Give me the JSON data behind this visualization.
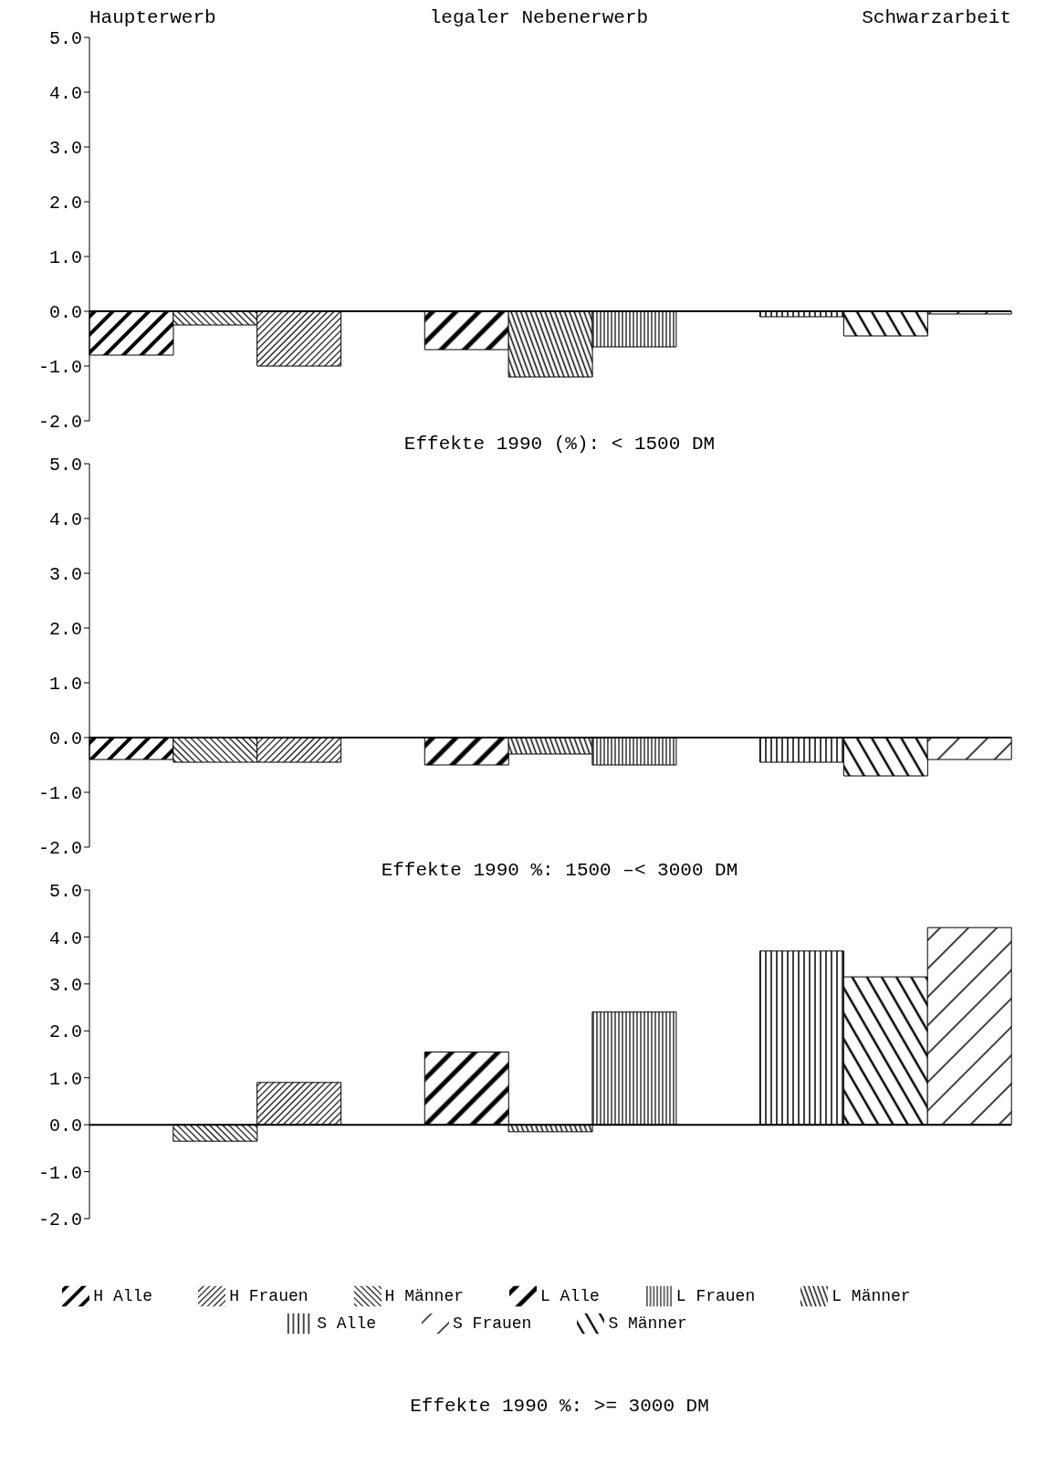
{
  "chart_data": [
    {
      "type": "bar",
      "stacked": true,
      "annotations": [
        "Haupterwerb",
        "legaler Nebenerwerb",
        "Schwarzarbeit"
      ],
      "xlabel": "Effekte 1990 (%): < 1500 DM",
      "categories": [
        null,
        null,
        null,
        null,
        null,
        null,
        null,
        null,
        null,
        null,
        null
      ],
      "ylim": [
        -2,
        5
      ],
      "yticks": [
        {
          "value": 5,
          "label": "5.0"
        },
        {
          "value": 4,
          "label": "4.0"
        },
        {
          "value": 3,
          "label": "3.0"
        },
        {
          "value": 2,
          "label": "2.0"
        },
        {
          "value": 1,
          "label": "1.0"
        },
        {
          "value": 0,
          "label": "0.0"
        },
        {
          "value": -1,
          "label": "-1.0"
        },
        {
          "value": -2,
          "label": "-2.0"
        }
      ],
      "tick_labels": "y",
      "legend": false,
      "series": [
        {
          "color": "#000000",
          "values": [
            -0.8,
            null,
            null,
            null,
            null,
            null,
            null,
            null,
            null,
            null,
            null
          ]
        },
        {
          "color": "#000000",
          "values": [
            null,
            -0.25,
            null,
            null,
            null,
            null,
            null,
            null,
            null,
            null,
            null
          ]
        },
        {
          "color": "#000000",
          "values": [
            null,
            null,
            -1.0,
            null,
            null,
            null,
            null,
            null,
            null,
            null,
            null
          ]
        },
        {
          "color": "#000000",
          "values": [
            null,
            null,
            null,
            null,
            -0.7,
            null,
            null,
            null,
            null,
            null,
            null
          ]
        },
        {
          "color": "#000000",
          "values": [
            null,
            null,
            null,
            null,
            null,
            -1.2,
            null,
            null,
            null,
            null,
            null
          ]
        },
        {
          "color": "#000000",
          "values": [
            null,
            null,
            null,
            null,
            null,
            null,
            -0.65,
            null,
            null,
            null,
            null
          ]
        },
        {
          "color": "#000000",
          "values": [
            null,
            null,
            null,
            null,
            null,
            null,
            null,
            null,
            -0.1,
            null,
            null
          ]
        },
        {
          "color": "#000000",
          "values": [
            null,
            null,
            null,
            null,
            null,
            null,
            null,
            null,
            null,
            -0.45,
            null
          ]
        },
        {
          "color": "#000000",
          "values": [
            null,
            null,
            null,
            null,
            null,
            null,
            null,
            null,
            null,
            null,
            -0.05
          ]
        }
      ]
    },
    {
      "type": "bar",
      "stacked": true,
      "xlabel": "Effekte 1990 %: 1500 –< 3000 DM",
      "categories": [
        null,
        null,
        null,
        null,
        null,
        null,
        null,
        null,
        null,
        null,
        null
      ],
      "ylim": [
        -2,
        5
      ],
      "yticks": [
        {
          "value": 5,
          "label": "5.0"
        },
        {
          "value": 4,
          "label": "4.0"
        },
        {
          "value": 3,
          "label": "3.0"
        },
        {
          "value": 2,
          "label": "2.0"
        },
        {
          "value": 1,
          "label": "1.0"
        },
        {
          "value": 0,
          "label": "0.0"
        },
        {
          "value": -1,
          "label": "-1.0"
        },
        {
          "value": -2,
          "label": "-2.0"
        }
      ],
      "tick_labels": "y",
      "legend": false,
      "series": [
        {
          "color": "#000000",
          "values": [
            -0.4,
            null,
            null,
            null,
            null,
            null,
            null,
            null,
            null,
            null,
            null
          ]
        },
        {
          "color": "#000000",
          "values": [
            null,
            -0.45,
            null,
            null,
            null,
            null,
            null,
            null,
            null,
            null,
            null
          ]
        },
        {
          "color": "#000000",
          "values": [
            null,
            null,
            -0.45,
            null,
            null,
            null,
            null,
            null,
            null,
            null,
            null
          ]
        },
        {
          "color": "#000000",
          "values": [
            null,
            null,
            null,
            null,
            -0.5,
            null,
            null,
            null,
            null,
            null,
            null
          ]
        },
        {
          "color": "#000000",
          "values": [
            null,
            null,
            null,
            null,
            null,
            -0.3,
            null,
            null,
            null,
            null,
            null
          ]
        },
        {
          "color": "#000000",
          "values": [
            null,
            null,
            null,
            null,
            null,
            null,
            -0.5,
            null,
            null,
            null,
            null
          ]
        },
        {
          "color": "#000000",
          "values": [
            null,
            null,
            null,
            null,
            null,
            null,
            null,
            null,
            -0.45,
            null,
            null
          ]
        },
        {
          "color": "#000000",
          "values": [
            null,
            null,
            null,
            null,
            null,
            null,
            null,
            null,
            null,
            -0.7,
            null
          ]
        },
        {
          "color": "#000000",
          "values": [
            null,
            null,
            null,
            null,
            null,
            null,
            null,
            null,
            null,
            null,
            -0.4
          ]
        }
      ]
    },
    {
      "type": "bar",
      "stacked": true,
      "xlabel": "Effekte 1990 %: >= 3000 DM",
      "categories": [
        null,
        null,
        null,
        null,
        null,
        null,
        null,
        null,
        null,
        null,
        null
      ],
      "ylim": [
        -2,
        5
      ],
      "yticks": [
        {
          "value": 5,
          "label": "5.0"
        },
        {
          "value": 4,
          "label": "4.0"
        },
        {
          "value": 3,
          "label": "3.0"
        },
        {
          "value": 2,
          "label": "2.0"
        },
        {
          "value": 1,
          "label": "1.0"
        },
        {
          "value": 0,
          "label": "0.0"
        },
        {
          "value": -1,
          "label": "-1.0"
        },
        {
          "value": -2,
          "label": "-2.0"
        }
      ],
      "tick_labels": "y",
      "legend": "bottom",
      "series": [
        {
          "name": "H Alle",
          "color": "#000000",
          "values": [
            0,
            null,
            null,
            null,
            null,
            null,
            null,
            null,
            null,
            null,
            null
          ]
        },
        {
          "name": "H Männer",
          "color": "#000000",
          "values": [
            null,
            -0.35,
            null,
            null,
            null,
            null,
            null,
            null,
            null,
            null,
            null
          ]
        },
        {
          "name": "H Frauen",
          "color": "#000000",
          "values": [
            null,
            null,
            0.9,
            null,
            null,
            null,
            null,
            null,
            null,
            null,
            null
          ]
        },
        {
          "name": "L Alle",
          "color": "#000000",
          "values": [
            null,
            null,
            null,
            null,
            1.55,
            null,
            null,
            null,
            null,
            null,
            null
          ]
        },
        {
          "name": "L Männer",
          "color": "#000000",
          "values": [
            null,
            null,
            null,
            null,
            null,
            -0.15,
            null,
            null,
            null,
            null,
            null
          ]
        },
        {
          "name": "L Frauen",
          "color": "#000000",
          "values": [
            null,
            null,
            null,
            null,
            null,
            null,
            2.4,
            null,
            null,
            null,
            null
          ]
        },
        {
          "name": "S Alle",
          "color": "#000000",
          "values": [
            null,
            null,
            null,
            null,
            null,
            null,
            null,
            null,
            3.7,
            null,
            null
          ]
        },
        {
          "name": "S Männer",
          "color": "#000000",
          "values": [
            null,
            null,
            null,
            null,
            null,
            null,
            null,
            null,
            null,
            3.15,
            null
          ]
        },
        {
          "name": "S Frauen",
          "color": "#000000",
          "values": [
            null,
            null,
            null,
            null,
            null,
            null,
            null,
            null,
            null,
            null,
            4.2
          ]
        }
      ]
    }
  ]
}
